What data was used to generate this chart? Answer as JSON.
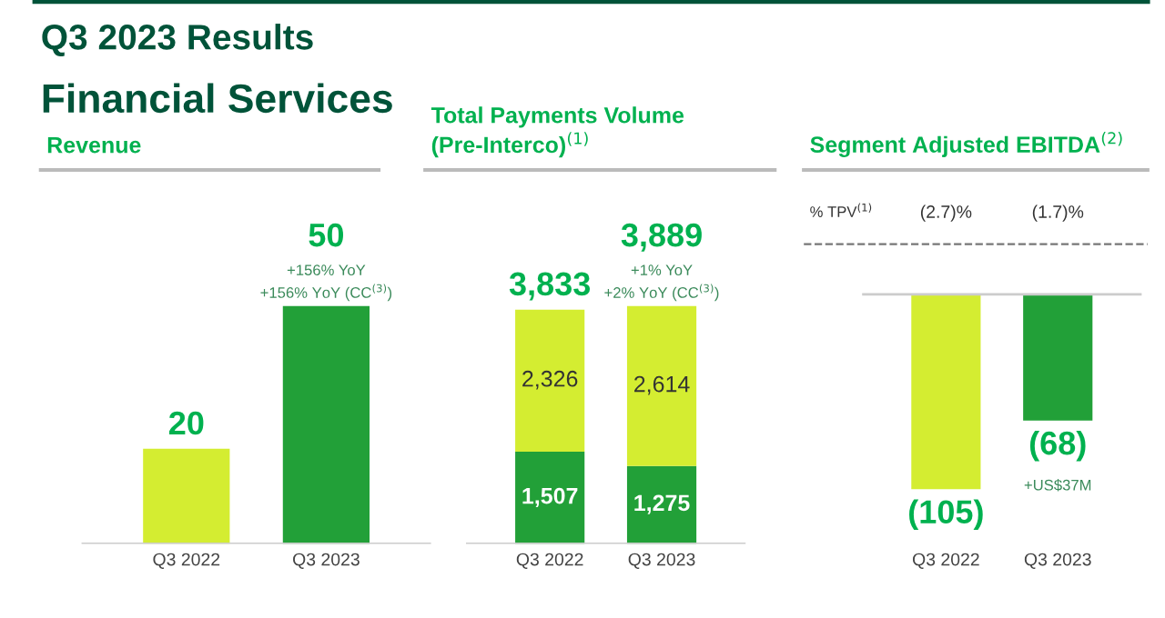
{
  "chart_data": [
    {
      "type": "bar",
      "title": "Revenue",
      "categories": [
        "Q3 2022",
        "Q3 2023"
      ],
      "values": [
        20,
        50
      ],
      "colors": [
        "#d4ed31",
        "#22a038"
      ],
      "data_labels": true,
      "tick_labels": "x",
      "annotations": [
        "Q3 2023 Results",
        "Financial Services",
        {
          "text": "+156% YoY",
          "x": "Q3 2023",
          "y": 50
        },
        {
          "text": "+156% YoY (CC$^{(3)}$)",
          "x": "Q3 2023",
          "y": 50
        }
      ]
    },
    {
      "type": "bar",
      "title": "Total Payments Volume\n(Pre-Interco)$^{(1)}$",
      "categories": [
        "Q3 2022",
        "Q3 2023"
      ],
      "stacked": true,
      "tick_labels": "x",
      "series": [
        {
          "color": "#22a038",
          "values": [
            1507,
            1275
          ],
          "value_labels": [
            "1,507",
            "1,275"
          ]
        },
        {
          "color": "#d4ed31",
          "values": [
            2326,
            2614
          ],
          "value_labels": [
            "2,326",
            "2,614"
          ]
        }
      ],
      "totals": [
        "3,833",
        "3,889"
      ],
      "annotations": [
        {
          "text": "+1% YoY",
          "x": "Q3 2023",
          "y": 3889
        },
        {
          "text": "+2% YoY (CC$^{(3)}$)",
          "x": "Q3 2023",
          "y": 3889
        }
      ]
    },
    {
      "type": "bar",
      "title": "Segment Adjusted EBITDA$^{(2)}$",
      "categories": [
        "Q3 2022",
        "Q3 2023"
      ],
      "values": [
        -105,
        -68
      ],
      "colors": [
        "#d4ed31",
        "#22a038"
      ],
      "value_labels": [
        "(105)",
        "(68)"
      ],
      "tick_labels": "x",
      "annotations": [
        "% TPV$^{(1)}$",
        "(2.7)%",
        "(1.7)%",
        "+US$37M"
      ]
    }
  ]
}
